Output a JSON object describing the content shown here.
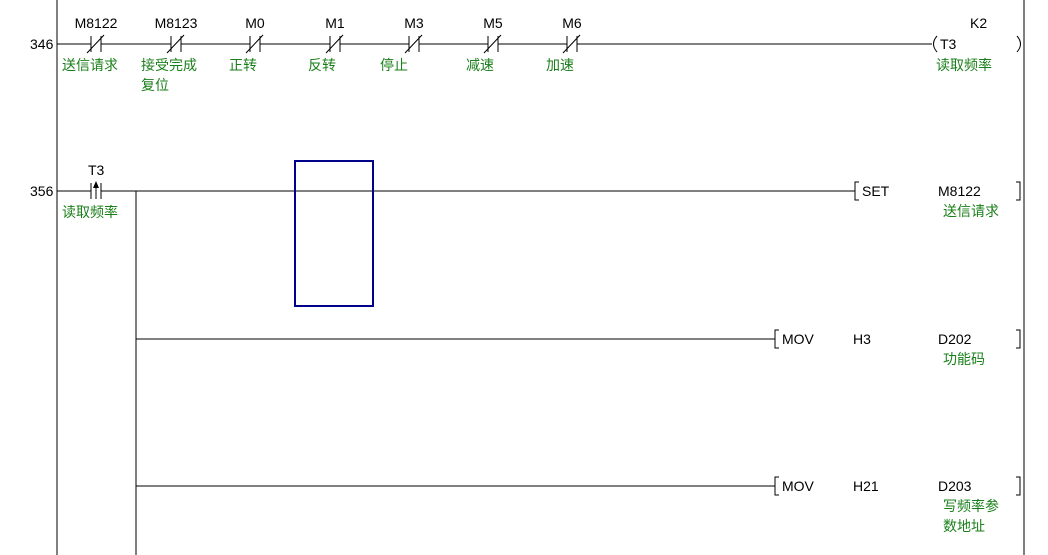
{
  "rungs": [
    {
      "step": "346",
      "contacts": [
        {
          "device": "M8122",
          "type": "normally-closed",
          "comment": [
            "送信请求"
          ]
        },
        {
          "device": "M8123",
          "type": "normally-closed",
          "comment": [
            "接受完成",
            "复位"
          ]
        },
        {
          "device": "M0",
          "type": "normally-closed",
          "comment": [
            "正转"
          ]
        },
        {
          "device": "M1",
          "type": "normally-closed",
          "comment": [
            "反转"
          ]
        },
        {
          "device": "M3",
          "type": "normally-closed",
          "comment": [
            "停止"
          ]
        },
        {
          "device": "M5",
          "type": "normally-closed",
          "comment": [
            "减速"
          ]
        },
        {
          "device": "M6",
          "type": "normally-closed",
          "comment": [
            "加速"
          ]
        }
      ],
      "coil": {
        "device": "T3",
        "setting": "K2",
        "comment": "读取频率"
      }
    },
    {
      "step": "356",
      "contact": {
        "device": "T3",
        "type": "rising-edge",
        "comment": "读取频率"
      },
      "outputs": [
        {
          "instruction": "SET",
          "op1": "",
          "op2": "M8122",
          "comment": [
            "送信请求"
          ]
        },
        {
          "instruction": "MOV",
          "op1": "H3",
          "op2": "D202",
          "comment": [
            "功能码"
          ]
        },
        {
          "instruction": "MOV",
          "op1": "H21",
          "op2": "D203",
          "comment": [
            "写频率参",
            "数地址"
          ]
        }
      ]
    }
  ],
  "colors": {
    "comment": "#1a7f1a",
    "cursor": "#00008b"
  }
}
